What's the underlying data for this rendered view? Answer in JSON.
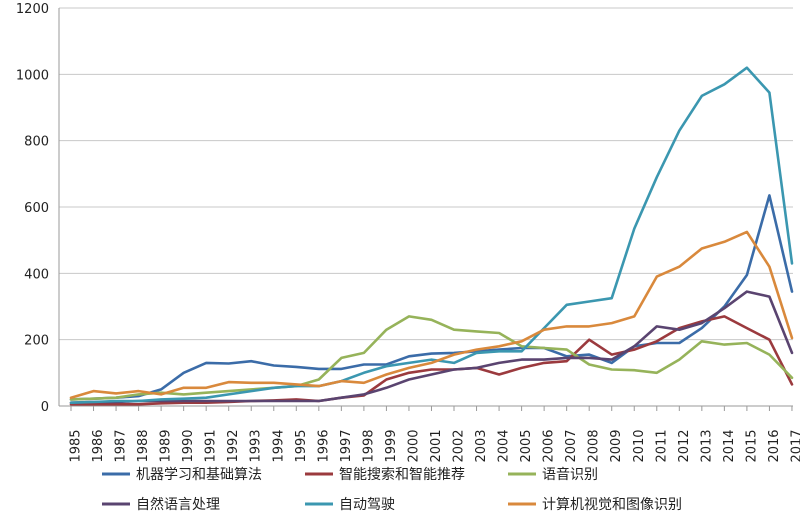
{
  "chart_data": {
    "type": "line",
    "title": "",
    "xlabel": "",
    "ylabel": "",
    "ylim": [
      0,
      1200
    ],
    "yticks": [
      "0",
      "200",
      "400",
      "600",
      "800",
      "1000",
      "1200"
    ],
    "grid": "horizontal",
    "legend_position": "bottom",
    "categories": [
      "1985",
      "1986",
      "1987",
      "1988",
      "1989",
      "1990",
      "1991",
      "1992",
      "1993",
      "1994",
      "1995",
      "1996",
      "1997",
      "1998",
      "1999",
      "2000",
      "2001",
      "2002",
      "2003",
      "2004",
      "2005",
      "2006",
      "2007",
      "2008",
      "2009",
      "2010",
      "2011",
      "2012",
      "2013",
      "2014",
      "2015",
      "2016",
      "2017"
    ],
    "series": [
      {
        "name": "机器学习和基础算法",
        "color": "#3b6ca8",
        "values": [
          20,
          22,
          25,
          30,
          50,
          100,
          130,
          128,
          135,
          122,
          118,
          112,
          112,
          125,
          125,
          150,
          158,
          160,
          165,
          170,
          175,
          175,
          150,
          155,
          130,
          180,
          190,
          190,
          235,
          300,
          395,
          635,
          345
        ]
      },
      {
        "name": "智能搜索和智能推荐",
        "color": "#9b3a3e",
        "values": [
          5,
          5,
          5,
          5,
          8,
          10,
          10,
          12,
          15,
          17,
          20,
          15,
          25,
          32,
          80,
          100,
          110,
          110,
          115,
          95,
          115,
          130,
          135,
          200,
          155,
          170,
          195,
          235,
          255,
          270,
          235,
          200,
          65
        ]
      },
      {
        "name": "语音识别",
        "color": "#96b35a",
        "values": [
          20,
          22,
          25,
          35,
          40,
          35,
          40,
          45,
          50,
          55,
          60,
          80,
          145,
          160,
          230,
          270,
          260,
          230,
          225,
          220,
          180,
          175,
          170,
          125,
          110,
          108,
          100,
          140,
          195,
          185,
          190,
          155,
          85
        ]
      },
      {
        "name": "自然语言处理",
        "color": "#5a4470",
        "values": [
          10,
          12,
          12,
          15,
          15,
          15,
          15,
          15,
          15,
          15,
          15,
          15,
          25,
          35,
          55,
          80,
          95,
          110,
          115,
          130,
          140,
          140,
          145,
          145,
          140,
          180,
          240,
          230,
          250,
          295,
          345,
          330,
          160
        ]
      },
      {
        "name": "自动驾驶",
        "color": "#3b97b0",
        "values": [
          10,
          12,
          15,
          15,
          20,
          22,
          25,
          35,
          45,
          55,
          60,
          60,
          75,
          100,
          120,
          130,
          140,
          130,
          160,
          165,
          165,
          235,
          305,
          315,
          325,
          535,
          690,
          830,
          935,
          970,
          1020,
          945,
          430
        ]
      },
      {
        "name": "计算机视觉和图像识别",
        "color": "#d9893c",
        "values": [
          25,
          45,
          38,
          45,
          35,
          55,
          55,
          72,
          70,
          70,
          65,
          60,
          75,
          70,
          95,
          115,
          130,
          155,
          170,
          180,
          195,
          230,
          240,
          240,
          250,
          270,
          390,
          420,
          475,
          495,
          525,
          420,
          205
        ]
      }
    ]
  }
}
